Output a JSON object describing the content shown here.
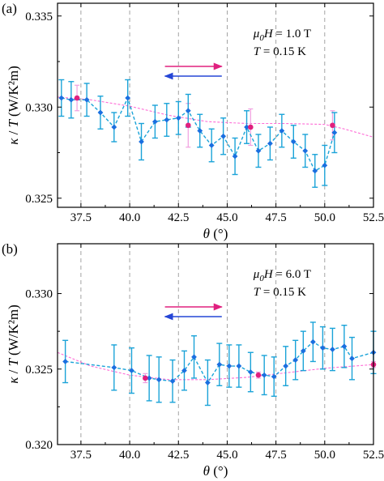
{
  "colors": {
    "up_sweep": "#e0207f",
    "down_sweep": "#2546d6",
    "series_point": "#1a6fe0",
    "series_line": "#1aa3d8",
    "errorbar": "#1aa3d8",
    "ref_point": "#e0207f",
    "ref_line": "#ff6bd6",
    "ref_errorbar": "#f0a0e0"
  },
  "chart_data": [
    {
      "type": "scatter",
      "panel_label": "(a)",
      "xlabel": "θ (°)",
      "ylabel": "κ / T (W/K²m)",
      "xlim": [
        36.3,
        52.5
      ],
      "ylim": [
        0.3245,
        0.3357
      ],
      "x_ticks": [
        37.5,
        40.0,
        42.5,
        45.0,
        47.5,
        50.0,
        52.5
      ],
      "x_tick_labels": [
        "37.5",
        "40.0",
        "42.5",
        "45.0",
        "47.5",
        "50.0",
        "52.5"
      ],
      "y_ticks": [
        0.325,
        0.33,
        0.335
      ],
      "y_tick_labels": [
        "0.325",
        "0.330",
        "0.335"
      ],
      "grid_x": true,
      "annotation_field": "μ0H = 1.0 T",
      "annotation_temp": "T = 0.15 K",
      "series": [
        {
          "style": "main",
          "x": [
            36.5,
            37.0,
            37.8,
            38.5,
            39.2,
            39.9,
            40.6,
            41.3,
            41.9,
            42.5,
            43.0,
            43.6,
            44.2,
            44.8,
            45.4,
            46.0,
            46.6,
            47.2,
            47.8,
            48.4,
            49.0,
            49.5,
            50.0,
            50.5
          ],
          "y": [
            0.3305,
            0.3304,
            0.3304,
            0.3297,
            0.3289,
            0.3305,
            0.3281,
            0.3292,
            0.3293,
            0.3294,
            0.3298,
            0.3287,
            0.3279,
            0.3284,
            0.3273,
            0.3289,
            0.3276,
            0.328,
            0.3287,
            0.3281,
            0.3276,
            0.3265,
            0.3268,
            0.3286
          ],
          "err": [
            0.001,
            0.001,
            0.0009,
            0.0009,
            0.0008,
            0.001,
            0.001,
            0.0009,
            0.0009,
            0.0009,
            0.0009,
            0.0009,
            0.0009,
            0.001,
            0.001,
            0.0009,
            0.0009,
            0.0009,
            0.0009,
            0.0009,
            0.0009,
            0.0009,
            0.0011,
            0.0011
          ]
        },
        {
          "style": "ref",
          "x": [
            37.3,
            43.0,
            46.2,
            50.4
          ],
          "y": [
            0.3305,
            0.329,
            0.3289,
            0.329
          ],
          "err": [
            0.0007,
            0.0012,
            0.001,
            0.0008
          ],
          "fit_x": [
            36.3,
            38.0,
            40.0,
            42.0,
            44.0,
            46.0,
            48.0,
            50.0,
            51.0,
            52.5
          ],
          "fit_y": [
            0.33055,
            0.3304,
            0.33005,
            0.32955,
            0.3292,
            0.3291,
            0.3291,
            0.32905,
            0.3288,
            0.32835
          ]
        }
      ],
      "sweep_arrows": [
        {
          "direction": "right",
          "color_key": "up_sweep"
        },
        {
          "direction": "left",
          "color_key": "down_sweep"
        }
      ]
    },
    {
      "type": "scatter",
      "panel_label": "(b)",
      "xlabel": "θ (°)",
      "ylabel": "κ / T (W/K²m)",
      "xlim": [
        36.3,
        52.5
      ],
      "ylim": [
        0.32,
        0.3333
      ],
      "x_ticks": [
        37.5,
        40.0,
        42.5,
        45.0,
        47.5,
        50.0,
        52.5
      ],
      "x_tick_labels": [
        "37.5",
        "40.0",
        "42.5",
        "45.0",
        "47.5",
        "50.0",
        "52.5"
      ],
      "y_ticks": [
        0.32,
        0.325,
        0.33
      ],
      "y_tick_labels": [
        "0.320",
        "0.325",
        "0.330"
      ],
      "grid_x": true,
      "annotation_field": "μ0H = 6.0 T",
      "annotation_temp": "T = 0.15 K",
      "series": [
        {
          "style": "main",
          "x": [
            36.7,
            39.2,
            40.1,
            41.0,
            41.5,
            42.2,
            42.8,
            43.3,
            44.0,
            44.6,
            45.1,
            45.6,
            46.2,
            46.9,
            47.4,
            48.0,
            48.5,
            48.9,
            49.4,
            49.9,
            50.4,
            51.0,
            51.4,
            52.5
          ],
          "y": [
            0.3255,
            0.3251,
            0.3249,
            0.3244,
            0.3243,
            0.3242,
            0.3249,
            0.3258,
            0.3241,
            0.3253,
            0.3252,
            0.3252,
            0.3248,
            0.3246,
            0.3245,
            0.3252,
            0.3256,
            0.3262,
            0.3268,
            0.3264,
            0.3263,
            0.3265,
            0.3257,
            0.3261
          ],
          "err": [
            0.0014,
            0.0015,
            0.0015,
            0.0015,
            0.0015,
            0.0014,
            0.0013,
            0.0014,
            0.0015,
            0.0014,
            0.0014,
            0.0014,
            0.0013,
            0.0013,
            0.0013,
            0.0013,
            0.0013,
            0.0013,
            0.0013,
            0.0014,
            0.0014,
            0.0014,
            0.0014,
            0.0014
          ]
        },
        {
          "style": "ref",
          "x": [
            40.8,
            46.6,
            52.5
          ],
          "y": [
            0.3244,
            0.3246,
            0.3253
          ],
          "err": [
            0.0003,
            0.0002,
            0.0002
          ],
          "fit_x": [
            36.3,
            38.0,
            40.0,
            42.0,
            44.0,
            46.0,
            48.0,
            50.0,
            52.5
          ],
          "fit_y": [
            0.3261,
            0.3252,
            0.3246,
            0.3243,
            0.3243,
            0.32445,
            0.32475,
            0.32505,
            0.3253
          ]
        }
      ],
      "sweep_arrows": [
        {
          "direction": "right",
          "color_key": "up_sweep"
        },
        {
          "direction": "left",
          "color_key": "down_sweep"
        }
      ]
    }
  ]
}
